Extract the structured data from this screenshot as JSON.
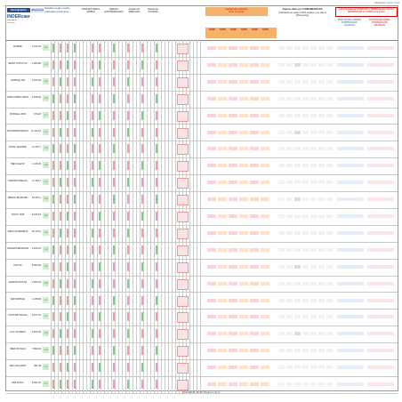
{
  "corner_text": "INDERcaer Sesión Final",
  "header": {
    "logo": "Ibercaja Bolsa",
    "date": "24-nov-11",
    "title": "Señales según varios indicadores técnicos",
    "col_a": "CONTROL MEDIA SIMPLE",
    "col_b": "MEDIAS EXPONENCIALES",
    "col_c": "Estado del MERCADO",
    "col_d": "Estado del SISTEMA",
    "brand": "INDERcaer",
    "brand_sub1": "Indicadores",
    "brand_sub2": "Técnicos",
    "red_note1": "Señales que debemos",
    "red_note2": "tener en cuenta",
    "stop_labels": [
      "STOP",
      "STOP",
      "STOP",
      "STOP",
      "STOP",
      "STOP"
    ],
    "fundamentals_title": "Algunos datos por FUNDAMENTALES",
    "fundamentals_sub": "(Cotizando en verde el 20% mejores y en rojo el 20% peores)",
    "right_red_title": "SOLO Señales de INVERSIÓN y HIBRIDAS para ordenes PERSONALES de FONDO para invertir",
    "right_block_a": "PUNTOS DE COMPRA PORTAFOLIOS ALCISTAS",
    "right_block_b": "PUNTOS DE VENTA PORTAFOLIOS BAJISTAS"
  },
  "rows": [
    {
      "name": "EPSIDE",
      "price": "1.414,70",
      "chg": "-1,2"
    },
    {
      "name": "EURO STOXX 50",
      "price": "2.063,90",
      "chg": "-1,0"
    },
    {
      "name": "NASDAQ 100",
      "price": "2.160,00",
      "chg": "-2,3"
    },
    {
      "name": "DOW JONES TRANSPORT",
      "price": "4.546,00",
      "chg": "-1,5"
    },
    {
      "name": "RUSSELL 2000",
      "price": "676,20",
      "chg": "-1,7"
    },
    {
      "name": "DOLOR/FINANCIALS",
      "price": "11.111,10",
      "chg": "-1,3"
    },
    {
      "name": "MITAL GRANDE",
      "price": "11.197,7",
      "chg": "-1,9"
    },
    {
      "name": "IBEX Asia 50",
      "price": "1.115,20",
      "chg": "-0,6"
    },
    {
      "name": "CANADA SPECIAL",
      "price": "11.181,1",
      "chg": "-1,3"
    },
    {
      "name": "BRASIL BOVESPA",
      "price": "54.475,1",
      "chg": "-1,8"
    },
    {
      "name": "TOKIO 7225",
      "price": "8.165,18",
      "chg": "-0,9"
    },
    {
      "name": "MEXICO MEXIBOX",
      "price": "35.175,2",
      "chg": "-1,0"
    },
    {
      "name": "SINGAPORE MAINAL",
      "price": "2.640,22",
      "chg": "-1,2"
    },
    {
      "name": "DAX 30",
      "price": "5.363,00",
      "chg": "-1,6"
    },
    {
      "name": "EUROSTOXX 50",
      "price": "2.060,75",
      "chg": "-0,8"
    },
    {
      "name": "S&P ESPACE",
      "price": "1.128,00",
      "chg": "-1,1"
    },
    {
      "name": "FOOTSIE 100 Hist",
      "price": "5.127,57",
      "chg": "-1,1"
    },
    {
      "name": "CAC 40 PARIS",
      "price": "2.822,30",
      "chg": "-1,6"
    },
    {
      "name": "IBEX 35 PALM",
      "price": "7.890,30",
      "chg": "-1,5"
    },
    {
      "name": "AEX HOLANDA",
      "price": "291,99",
      "chg": "-1,3"
    },
    {
      "name": "SMI SUIZA",
      "price": "5.397,10",
      "chg": "-0,7"
    }
  ],
  "footer": "24/11/2011   15:45   Página 1 de 2"
}
